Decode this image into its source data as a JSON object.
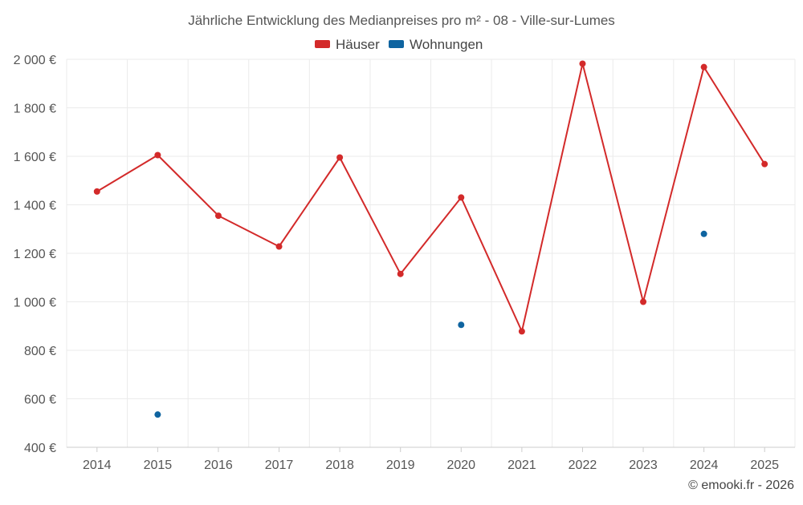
{
  "chart_data": {
    "type": "line",
    "title": "Jährliche Entwicklung des Medianpreises pro m² - 08 - Ville-sur-Lumes",
    "xlabel": "",
    "ylabel": "",
    "categories": [
      "2014",
      "2015",
      "2016",
      "2017",
      "2018",
      "2019",
      "2020",
      "2021",
      "2022",
      "2023",
      "2024",
      "2025"
    ],
    "ylim": [
      400,
      2000
    ],
    "yticks": [
      400,
      600,
      800,
      1000,
      1200,
      1400,
      1600,
      1800,
      2000
    ],
    "ytick_labels": [
      "400 €",
      "600 €",
      "800 €",
      "1 000 €",
      "1 200 €",
      "1 400 €",
      "1 600 €",
      "1 800 €",
      "2 000 €"
    ],
    "grid": true,
    "legend_position": "top-center",
    "series": [
      {
        "name": "Häuser",
        "color": "#d32a2a",
        "values": [
          1455,
          1605,
          1355,
          1228,
          1595,
          1115,
          1430,
          878,
          1982,
          1000,
          1968,
          1568
        ]
      },
      {
        "name": "Wohnungen",
        "color": "#0f64a0",
        "values": [
          null,
          535,
          null,
          null,
          null,
          null,
          905,
          null,
          null,
          null,
          1280,
          null
        ]
      }
    ]
  },
  "credit": "© emooki.fr - 2026"
}
